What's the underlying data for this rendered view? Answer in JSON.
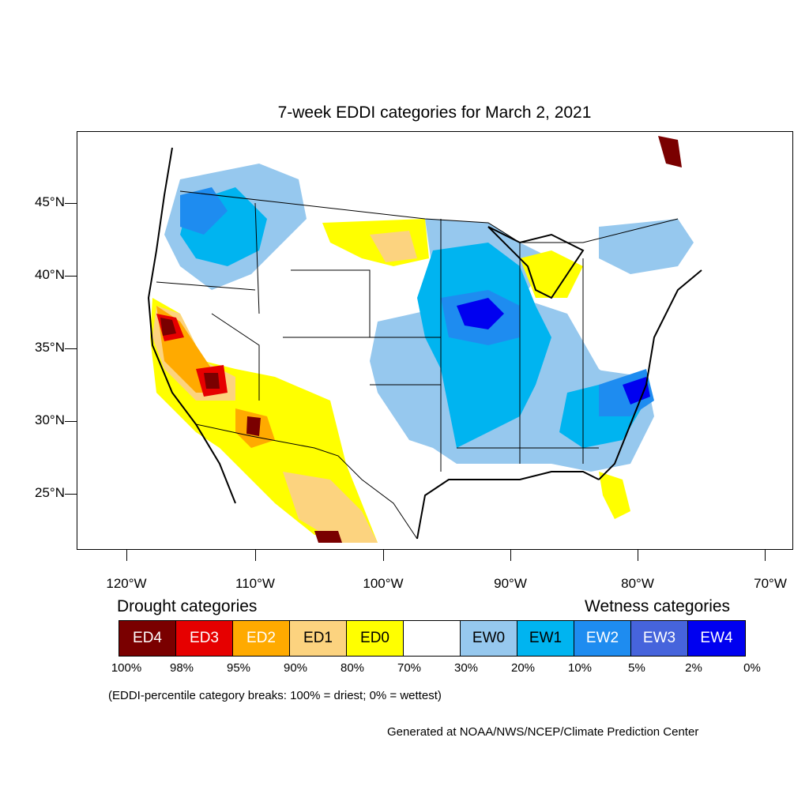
{
  "title": "7-week EDDI categories for March 2, 2021",
  "axes": {
    "latitude_labels": [
      "45°N",
      "40°N",
      "35°N",
      "30°N",
      "25°N"
    ],
    "longitude_labels": [
      "120°W",
      "110°W",
      "100°W",
      "90°W",
      "80°W",
      "70°W"
    ]
  },
  "legend": {
    "drought_heading": "Drought categories",
    "wetness_heading": "Wetness categories",
    "categories": [
      {
        "label": "ED4",
        "color": "#7a0000",
        "text_color": "#ffffff"
      },
      {
        "label": "ED3",
        "color": "#e60000",
        "text_color": "#ffffff"
      },
      {
        "label": "ED2",
        "color": "#ffaa00",
        "text_color": "#ffffff"
      },
      {
        "label": "ED1",
        "color": "#fcd37f",
        "text_color": "#000000"
      },
      {
        "label": "ED0",
        "color": "#ffff00",
        "text_color": "#000000"
      },
      {
        "label": "",
        "color": "#ffffff",
        "text_color": "#000000"
      },
      {
        "label": "EW0",
        "color": "#96c8ee",
        "text_color": "#000000"
      },
      {
        "label": "EW1",
        "color": "#00b4f0",
        "text_color": "#000000"
      },
      {
        "label": "EW2",
        "color": "#1e8cf0",
        "text_color": "#ffffff"
      },
      {
        "label": "EW3",
        "color": "#4664dc",
        "text_color": "#ffffff"
      },
      {
        "label": "EW4",
        "color": "#0000f0",
        "text_color": "#ffffff"
      }
    ],
    "percent_breaks": [
      "100%",
      "98%",
      "95%",
      "90%",
      "80%",
      "70%",
      "30%",
      "20%",
      "10%",
      "5%",
      "2%",
      "0%"
    ]
  },
  "note": "(EDDI-percentile category breaks: 100% = driest; 0% = wettest)",
  "credit": "Generated at NOAA/NWS/NCEP/Climate Prediction Center"
}
